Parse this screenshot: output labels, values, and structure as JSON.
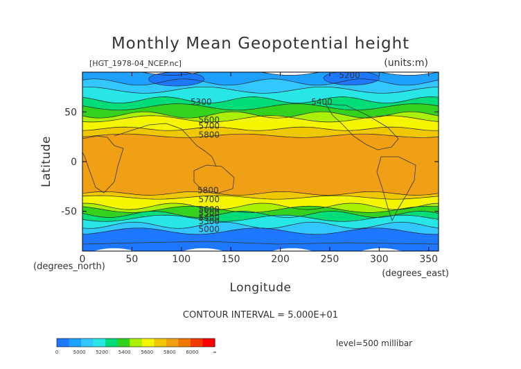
{
  "chart_data": {
    "type": "heatmap",
    "title": "Monthly Mean Geopotential height",
    "file_label": "[HGT_1978-04_NCEP.nc]",
    "units_label": "(units:m)",
    "xlabel": "Longitude",
    "ylabel": "Latitude",
    "x_unit_label": "(degrees_east)",
    "y_unit_label": "(degrees_north)",
    "xlim": [
      0,
      360
    ],
    "ylim": [
      -90,
      90
    ],
    "x_ticks": [
      0,
      50,
      100,
      150,
      200,
      250,
      300,
      350
    ],
    "y_ticks": [
      -50,
      0,
      50
    ],
    "contour_interval_text": "CONTOUR INTERVAL = 5.000E+01",
    "level_text": "level=500 millibar",
    "contour_labels": [
      {
        "text": "5200",
        "x": 270,
        "y": 87
      },
      {
        "text": "5300",
        "x": 120,
        "y": 60
      },
      {
        "text": "5400",
        "x": 242,
        "y": 60
      },
      {
        "text": "5600",
        "x": 128,
        "y": 42
      },
      {
        "text": "5700",
        "x": 128,
        "y": 36
      },
      {
        "text": "5800",
        "x": 128,
        "y": 27
      },
      {
        "text": "5800",
        "x": 127,
        "y": -29
      },
      {
        "text": "5700",
        "x": 128,
        "y": -38
      },
      {
        "text": "5600",
        "x": 128,
        "y": -48
      },
      {
        "text": "5500",
        "x": 128,
        "y": -52
      },
      {
        "text": "5400",
        "x": 128,
        "y": -56
      },
      {
        "text": "5300",
        "x": 128,
        "y": -60
      },
      {
        "text": "5000",
        "x": 128,
        "y": -68
      }
    ],
    "bands": [
      {
        "from": 90,
        "to": 80,
        "color": "#1ea0ff"
      },
      {
        "from": 80,
        "to": 72,
        "color": "#32c8ff"
      },
      {
        "from": 72,
        "to": 62,
        "color": "#28e6e6"
      },
      {
        "from": 62,
        "to": 55,
        "color": "#00dc78"
      },
      {
        "from": 55,
        "to": 47,
        "color": "#32d21e"
      },
      {
        "from": 47,
        "to": 43,
        "color": "#aaf000"
      },
      {
        "from": 43,
        "to": 33,
        "color": "#f5f500"
      },
      {
        "from": 33,
        "to": 26,
        "color": "#f0c800"
      },
      {
        "from": 26,
        "to": -32,
        "color": "#f0a014"
      },
      {
        "from": -32,
        "to": -36,
        "color": "#f0c800"
      },
      {
        "from": -36,
        "to": -45,
        "color": "#f5f500"
      },
      {
        "from": -45,
        "to": -48,
        "color": "#aaf000"
      },
      {
        "from": -48,
        "to": -53,
        "color": "#32d21e"
      },
      {
        "from": -53,
        "to": -57,
        "color": "#00dc78"
      },
      {
        "from": -57,
        "to": -64,
        "color": "#28e6e6"
      },
      {
        "from": -64,
        "to": -70,
        "color": "#32c8ff"
      },
      {
        "from": -70,
        "to": -90,
        "color": "#1e78ff"
      }
    ],
    "low_cores": [
      {
        "name": "arctic-low-west",
        "lon": 95,
        "lat": 83,
        "color": "#1e78ff"
      },
      {
        "name": "arctic-low-east",
        "lon": 272,
        "lat": 84,
        "color": "#1e78ff"
      }
    ],
    "colorbar": {
      "tick_labels": [
        "0",
        "5000",
        "5200",
        "5400",
        "5600",
        "5800",
        "6000",
        "∞"
      ],
      "colors": [
        "#1e78ff",
        "#1ea0ff",
        "#32c8ff",
        "#28e6e6",
        "#00dc78",
        "#32d21e",
        "#aaf000",
        "#f5f500",
        "#f0c800",
        "#f0a014",
        "#f07800",
        "#f03c00",
        "#ff0000"
      ]
    }
  }
}
